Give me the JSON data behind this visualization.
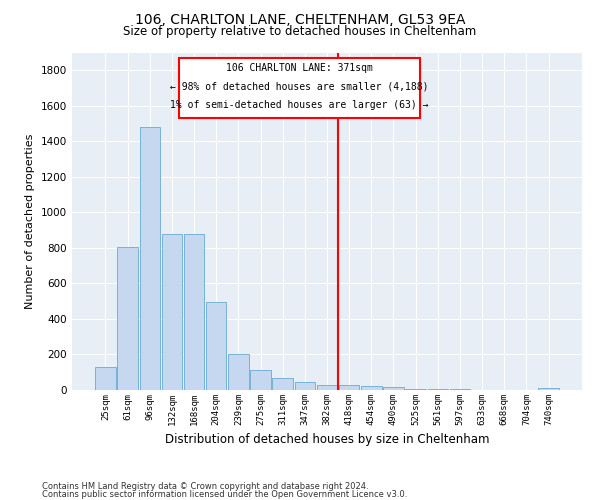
{
  "title_line1": "106, CHARLTON LANE, CHELTENHAM, GL53 9EA",
  "title_line2": "Size of property relative to detached houses in Cheltenham",
  "xlabel": "Distribution of detached houses by size in Cheltenham",
  "ylabel": "Number of detached properties",
  "footer_line1": "Contains HM Land Registry data © Crown copyright and database right 2024.",
  "footer_line2": "Contains public sector information licensed under the Open Government Licence v3.0.",
  "annotation_line1": "106 CHARLTON LANE: 371sqm",
  "annotation_line2": "← 98% of detached houses are smaller (4,188)",
  "annotation_line3": "1% of semi-detached houses are larger (63) →",
  "bar_labels": [
    "25sqm",
    "61sqm",
    "96sqm",
    "132sqm",
    "168sqm",
    "204sqm",
    "239sqm",
    "275sqm",
    "311sqm",
    "347sqm",
    "382sqm",
    "418sqm",
    "454sqm",
    "490sqm",
    "525sqm",
    "561sqm",
    "597sqm",
    "633sqm",
    "668sqm",
    "704sqm",
    "740sqm"
  ],
  "bar_values": [
    130,
    805,
    1480,
    880,
    880,
    495,
    205,
    110,
    68,
    45,
    30,
    28,
    22,
    15,
    8,
    5,
    3,
    2,
    1,
    1,
    10
  ],
  "bar_color": "#c5d8f0",
  "bar_edge_color": "#6aaad4",
  "vline_x": 10.5,
  "vline_color": "red",
  "annotation_box_color": "red",
  "background_color": "#e8eef5",
  "grid_color": "#ffffff",
  "ylim": [
    0,
    1900
  ],
  "yticks": [
    0,
    200,
    400,
    600,
    800,
    1000,
    1200,
    1400,
    1600,
    1800
  ]
}
